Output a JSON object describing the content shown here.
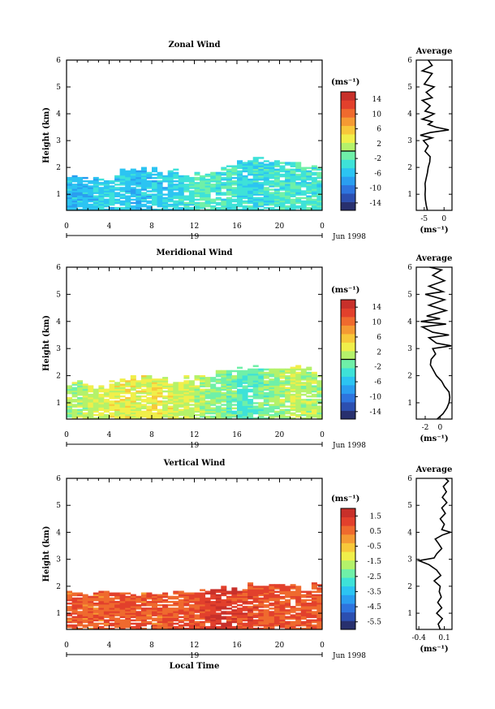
{
  "chart_data": [
    {
      "type": "heatmap",
      "title": "Zonal Wind",
      "ylabel": "Height (km)",
      "xticks": [
        "0",
        "4",
        "8",
        "12",
        "16",
        "20",
        "0"
      ],
      "xlim": [
        0,
        24
      ],
      "ylim": [
        0.4,
        6
      ],
      "yticks": [
        "1",
        "2",
        "3",
        "4",
        "5",
        "6"
      ],
      "date_row": {
        "day": "19",
        "month_year": "Jun 1998"
      },
      "colorbar": {
        "unit": "(ms⁻¹)",
        "ticks": [
          "14",
          "10",
          "6",
          "2",
          "-2",
          "-6",
          "-10",
          "-14"
        ],
        "range": [
          -16,
          16
        ],
        "marker": 0
      },
      "coverage": [
        [
          0,
          0.4,
          1.6
        ],
        [
          1,
          0.4,
          1.7
        ],
        [
          2,
          0.4,
          1.6
        ],
        [
          3,
          0.4,
          1.5
        ],
        [
          4,
          0.4,
          1.6
        ],
        [
          5,
          0.4,
          1.9
        ],
        [
          6,
          0.4,
          1.9
        ],
        [
          7,
          0.4,
          1.9
        ],
        [
          8,
          0.4,
          1.9
        ],
        [
          9,
          0.4,
          1.8
        ],
        [
          10,
          0.4,
          1.8
        ],
        [
          11,
          0.4,
          1.7
        ],
        [
          12,
          0.4,
          1.7
        ],
        [
          13,
          0.4,
          1.8
        ],
        [
          14,
          0.4,
          1.9
        ],
        [
          15,
          0.4,
          2.1
        ],
        [
          16,
          0.4,
          2.2
        ],
        [
          17,
          0.4,
          2.3
        ],
        [
          18,
          0.4,
          2.3
        ],
        [
          19,
          0.4,
          2.2
        ],
        [
          20,
          0.4,
          2.2
        ],
        [
          21,
          0.4,
          2.1
        ],
        [
          22,
          0.4,
          2.0
        ],
        [
          23,
          0.4,
          2.0
        ]
      ],
      "base_values": [
        -6,
        -6,
        -6,
        -5,
        -5,
        -5,
        -6,
        -6,
        -5,
        -5,
        -4,
        -3,
        -2,
        -2,
        -3,
        -3,
        -4,
        -4,
        -4,
        -3,
        -3,
        -3,
        -3,
        -3
      ],
      "inset": {
        "title": "Average",
        "xlabel": "(ms⁻¹)",
        "xticks": [
          "-5",
          "0"
        ],
        "xtick_values": [
          -5,
          0
        ],
        "xlim": [
          -7,
          2
        ],
        "yticks": [
          "1",
          "2",
          "3",
          "4",
          "5",
          "6"
        ],
        "profile": [
          [
            0.4,
            -4.2
          ],
          [
            0.6,
            -4.5
          ],
          [
            0.8,
            -4.7
          ],
          [
            1.0,
            -4.8
          ],
          [
            1.2,
            -4.7
          ],
          [
            1.4,
            -4.8
          ],
          [
            1.6,
            -4.5
          ],
          [
            1.8,
            -4.2
          ],
          [
            2.0,
            -4.0
          ],
          [
            2.2,
            -3.6
          ],
          [
            2.4,
            -3.5
          ],
          [
            2.6,
            -4.8
          ],
          [
            2.8,
            -4.0
          ],
          [
            3.0,
            -5.2
          ],
          [
            3.1,
            -3.0
          ],
          [
            3.2,
            -6.0
          ],
          [
            3.3,
            -3.5
          ],
          [
            3.4,
            1.2
          ],
          [
            3.5,
            -2.0
          ],
          [
            3.6,
            -4.0
          ],
          [
            3.7,
            -3.0
          ],
          [
            3.8,
            -5.5
          ],
          [
            3.9,
            -3.8
          ],
          [
            4.0,
            -2.5
          ],
          [
            4.1,
            -4.8
          ],
          [
            4.3,
            -3.5
          ],
          [
            4.5,
            -5.5
          ],
          [
            4.6,
            -3.0
          ],
          [
            4.8,
            -4.5
          ],
          [
            5.0,
            -2.5
          ],
          [
            5.1,
            -5.0
          ],
          [
            5.3,
            -4.0
          ],
          [
            5.5,
            -3.0
          ],
          [
            5.6,
            -5.5
          ],
          [
            5.8,
            -3.0
          ],
          [
            6.0,
            -4.0
          ]
        ]
      }
    },
    {
      "type": "heatmap",
      "title": "Meridional Wind",
      "ylabel": "Height (km)",
      "xticks": [
        "0",
        "4",
        "8",
        "12",
        "16",
        "20",
        "0"
      ],
      "xlim": [
        0,
        24
      ],
      "ylim": [
        0.4,
        6
      ],
      "yticks": [
        "1",
        "2",
        "3",
        "4",
        "5",
        "6"
      ],
      "date_row": {
        "day": "19",
        "month_year": "Jun 1998"
      },
      "colorbar": {
        "unit": "(ms⁻¹)",
        "ticks": [
          "14",
          "10",
          "6",
          "2",
          "-2",
          "-6",
          "-10",
          "-14"
        ],
        "range": [
          -16,
          16
        ],
        "marker": 0
      },
      "coverage": [
        [
          0,
          0.4,
          1.7
        ],
        [
          1,
          0.4,
          1.7
        ],
        [
          2,
          0.4,
          1.6
        ],
        [
          3,
          0.4,
          1.6
        ],
        [
          4,
          0.4,
          1.8
        ],
        [
          5,
          0.4,
          1.9
        ],
        [
          6,
          0.4,
          1.9
        ],
        [
          7,
          0.4,
          1.9
        ],
        [
          8,
          0.4,
          1.9
        ],
        [
          9,
          0.4,
          1.8
        ],
        [
          10,
          0.4,
          1.8
        ],
        [
          11,
          0.4,
          1.9
        ],
        [
          12,
          0.4,
          1.9
        ],
        [
          13,
          0.4,
          2.0
        ],
        [
          14,
          0.4,
          2.1
        ],
        [
          15,
          0.4,
          2.2
        ],
        [
          16,
          0.4,
          2.3
        ],
        [
          17,
          0.4,
          2.3
        ],
        [
          18,
          0.4,
          2.3
        ],
        [
          19,
          0.4,
          2.3
        ],
        [
          20,
          0.4,
          2.3
        ],
        [
          21,
          0.4,
          2.4
        ],
        [
          22,
          0.4,
          2.3
        ],
        [
          23,
          0.4,
          2.0
        ]
      ],
      "base_values": [
        1,
        1,
        2,
        2,
        3,
        3,
        3,
        3,
        4,
        3,
        2,
        2,
        1,
        0,
        0,
        -1,
        -2,
        -2,
        -1,
        0,
        1,
        2,
        1,
        1
      ],
      "inset": {
        "title": "Average",
        "xlabel": "(ms⁻¹)",
        "xticks": [
          "-2",
          "0"
        ],
        "xtick_values": [
          -2,
          0
        ],
        "xlim": [
          -3.2,
          1.6
        ],
        "yticks": [
          "1",
          "2",
          "3",
          "4",
          "5",
          "6"
        ],
        "profile": [
          [
            0.4,
            -0.4
          ],
          [
            0.6,
            0.4
          ],
          [
            0.8,
            0.9
          ],
          [
            1.0,
            1.2
          ],
          [
            1.2,
            1.3
          ],
          [
            1.4,
            1.2
          ],
          [
            1.6,
            0.6
          ],
          [
            1.8,
            0.2
          ],
          [
            2.0,
            -0.5
          ],
          [
            2.2,
            -0.9
          ],
          [
            2.4,
            -1.3
          ],
          [
            2.6,
            -1.2
          ],
          [
            2.8,
            -0.6
          ],
          [
            3.0,
            -1.0
          ],
          [
            3.1,
            1.5
          ],
          [
            3.2,
            -0.5
          ],
          [
            3.4,
            -1.5
          ],
          [
            3.5,
            1.2
          ],
          [
            3.6,
            -1.0
          ],
          [
            3.8,
            -2.4
          ],
          [
            3.9,
            0.8
          ],
          [
            4.0,
            -2.6
          ],
          [
            4.1,
            0.0
          ],
          [
            4.2,
            -1.8
          ],
          [
            4.4,
            0.8
          ],
          [
            4.6,
            -1.5
          ],
          [
            4.8,
            0.6
          ],
          [
            5.0,
            -2.0
          ],
          [
            5.1,
            0.4
          ],
          [
            5.3,
            -1.5
          ],
          [
            5.5,
            0.6
          ],
          [
            5.7,
            -1.0
          ],
          [
            5.9,
            0.2
          ],
          [
            6.0,
            -1.4
          ]
        ]
      }
    },
    {
      "type": "heatmap",
      "title": "Vertical Wind",
      "ylabel": "Height (km)",
      "xlabel": "Local Time",
      "xticks": [
        "0",
        "4",
        "8",
        "12",
        "16",
        "20",
        "0"
      ],
      "xlim": [
        0,
        24
      ],
      "ylim": [
        0.4,
        6
      ],
      "yticks": [
        "1",
        "2",
        "3",
        "4",
        "5",
        "6"
      ],
      "date_row": {
        "day": "19",
        "month_year": "Jun 1998"
      },
      "colorbar": {
        "unit": "(ms⁻¹)",
        "ticks": [
          "1.5",
          "0.5",
          "-0.5",
          "-1.5",
          "-2.5",
          "-3.5",
          "-4.5",
          "-5.5"
        ],
        "range": [
          -6,
          2
        ],
        "marker": null
      },
      "coverage": [
        [
          0,
          0.4,
          1.7
        ],
        [
          1,
          0.4,
          1.7
        ],
        [
          2,
          0.4,
          1.7
        ],
        [
          3,
          0.4,
          1.7
        ],
        [
          4,
          0.4,
          1.7
        ],
        [
          5,
          0.4,
          1.8
        ],
        [
          6,
          0.4,
          1.7
        ],
        [
          7,
          0.4,
          1.7
        ],
        [
          8,
          0.4,
          1.7
        ],
        [
          9,
          0.4,
          1.7
        ],
        [
          10,
          0.4,
          1.7
        ],
        [
          11,
          0.4,
          1.7
        ],
        [
          12,
          0.4,
          1.8
        ],
        [
          13,
          0.4,
          1.8
        ],
        [
          14,
          0.4,
          1.9
        ],
        [
          15,
          0.4,
          1.9
        ],
        [
          16,
          0.4,
          2.0
        ],
        [
          17,
          0.4,
          2.0
        ],
        [
          18,
          0.4,
          2.0
        ],
        [
          19,
          0.4,
          2.1
        ],
        [
          20,
          0.4,
          2.0
        ],
        [
          21,
          0.4,
          2.0
        ],
        [
          22,
          0.4,
          1.9
        ],
        [
          23,
          0.4,
          2.0
        ]
      ],
      "base_values": [
        0.7,
        0.7,
        0.7,
        0.7,
        0.8,
        0.8,
        0.8,
        0.7,
        0.7,
        0.8,
        0.9,
        0.9,
        1.0,
        1.2,
        1.4,
        1.3,
        1.1,
        1.0,
        0.9,
        0.9,
        0.8,
        0.8,
        0.8,
        0.8
      ],
      "inset": {
        "title": "Average",
        "xlabel": "(ms⁻¹)",
        "xticks": [
          "-0.4",
          "0.1"
        ],
        "xtick_values": [
          -0.4,
          0.1
        ],
        "xlim": [
          -0.45,
          0.25
        ],
        "yticks": [
          "1",
          "2",
          "3",
          "4",
          "5",
          "6"
        ],
        "profile": [
          [
            0.4,
            0.02
          ],
          [
            0.6,
            -0.02
          ],
          [
            0.8,
            0.06
          ],
          [
            1.0,
            -0.05
          ],
          [
            1.2,
            0.05
          ],
          [
            1.4,
            -0.03
          ],
          [
            1.6,
            0.04
          ],
          [
            1.8,
            0.0
          ],
          [
            2.0,
            0.02
          ],
          [
            2.2,
            -0.1
          ],
          [
            2.4,
            0.03
          ],
          [
            2.6,
            -0.05
          ],
          [
            2.8,
            -0.2
          ],
          [
            2.95,
            -0.4
          ],
          [
            3.05,
            -0.1
          ],
          [
            3.2,
            -0.05
          ],
          [
            3.4,
            0.05
          ],
          [
            3.6,
            -0.02
          ],
          [
            3.75,
            -0.08
          ],
          [
            3.9,
            0.06
          ],
          [
            4.0,
            0.22
          ],
          [
            4.1,
            0.05
          ],
          [
            4.3,
            0.1
          ],
          [
            4.5,
            0.02
          ],
          [
            4.7,
            0.12
          ],
          [
            4.9,
            0.05
          ],
          [
            5.1,
            0.15
          ],
          [
            5.3,
            0.06
          ],
          [
            5.5,
            0.14
          ],
          [
            5.7,
            0.08
          ],
          [
            5.9,
            0.18
          ],
          [
            6.0,
            0.12
          ]
        ]
      }
    }
  ]
}
